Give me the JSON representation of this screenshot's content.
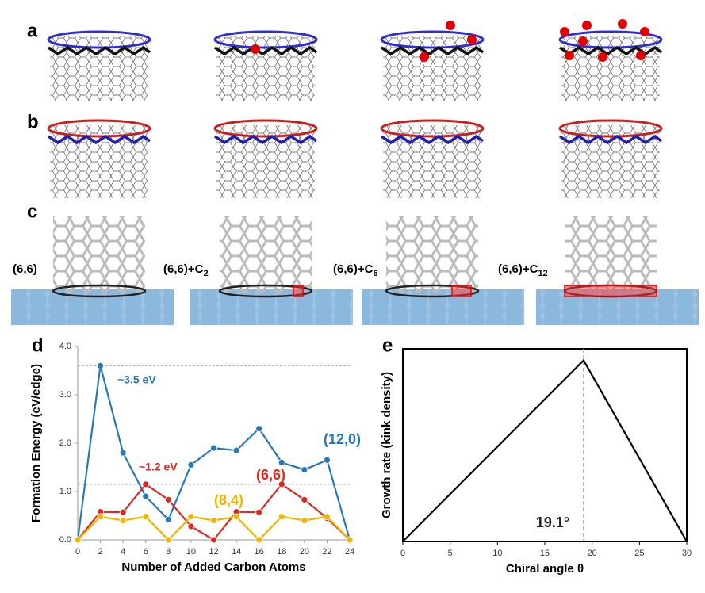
{
  "panel_labels": [
    "a",
    "b",
    "c"
  ],
  "structure_labels": [
    {
      "text": "(6,6)"
    },
    {
      "text": "(6,6)+C",
      "sub": "2"
    },
    {
      "text": "(6,6)+C",
      "sub": "6"
    },
    {
      "text": "(6,6)+C",
      "sub": "12"
    }
  ],
  "chart_data": [
    {
      "type": "line",
      "label": "d",
      "x_label": "Number of Added Carbon Atoms",
      "y_label": "Formation Energy (eV/edge)",
      "x": [
        0,
        2,
        4,
        6,
        8,
        10,
        12,
        14,
        16,
        18,
        20,
        22,
        24
      ],
      "xlim": [
        0,
        24
      ],
      "xticks": [
        0,
        2,
        4,
        6,
        8,
        10,
        12,
        14,
        16,
        18,
        20,
        22,
        24
      ],
      "ylim": [
        0,
        4
      ],
      "yticks": [
        {
          "value": 0,
          "label": "0.0"
        },
        {
          "value": 1,
          "label": "1.0"
        },
        {
          "value": 2,
          "label": "2.0"
        },
        {
          "value": 3,
          "label": "3.0"
        },
        {
          "value": 4,
          "label": "4.0"
        }
      ],
      "reference_lines": [
        3.6,
        1.15
      ],
      "series": [
        {
          "name": "(12,0)",
          "color": "#2878b5",
          "values": [
            0,
            3.6,
            1.8,
            0.9,
            0.42,
            1.55,
            1.9,
            1.85,
            2.3,
            1.6,
            1.45,
            1.65,
            0
          ]
        },
        {
          "name": "(6,6)",
          "color": "#d62a22",
          "values": [
            0,
            0.58,
            0.57,
            1.15,
            0.83,
            0.28,
            0,
            0.58,
            0.57,
            1.15,
            0.83,
            0.45,
            0
          ]
        },
        {
          "name": "(8,4)",
          "color": "#f0b400",
          "values": [
            0,
            0.48,
            0.4,
            0.48,
            0,
            0.48,
            0.4,
            0.48,
            0,
            0.48,
            0.4,
            0.48,
            0
          ]
        }
      ],
      "annotations": [
        {
          "text": "~3.5 eV",
          "color": "#2878b5"
        },
        {
          "text": "~1.2 eV",
          "color": "#d62a22"
        }
      ]
    },
    {
      "type": "line",
      "label": "e",
      "x_label": "Chiral angle θ",
      "y_label": "Growth rate (kink density)",
      "x": [
        0,
        19.1,
        30
      ],
      "xlim": [
        0,
        30
      ],
      "xticks": [
        0,
        5,
        10,
        15,
        20,
        25,
        30
      ],
      "ylim": [
        0,
        1
      ],
      "vline": 19.1,
      "series": [
        {
          "color": "#000000",
          "values": [
            0,
            0.94,
            0
          ]
        }
      ],
      "annotations": [
        {
          "text": "19.1°"
        }
      ]
    }
  ]
}
